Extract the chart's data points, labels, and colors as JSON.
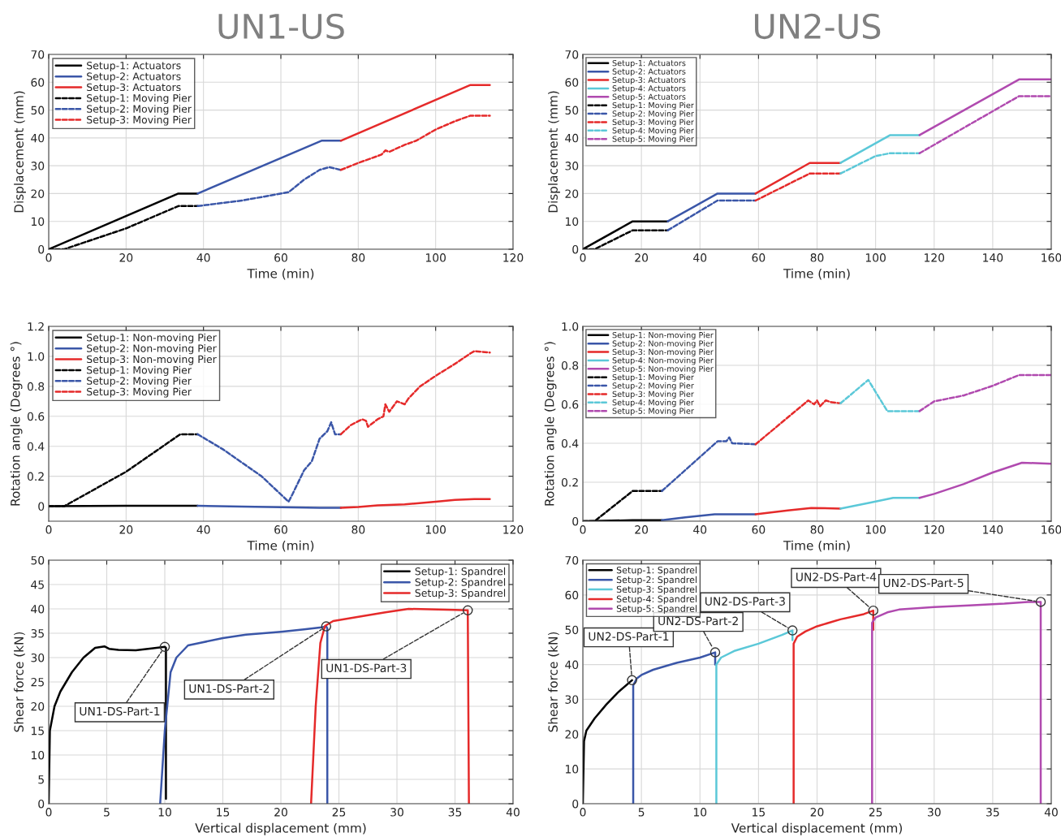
{
  "chart_data": [
    {
      "type": "line",
      "title": "UN1-US",
      "xlabel": "Time (min)",
      "ylabel": "Displacement (mm)",
      "xlim": [
        0,
        120
      ],
      "xticks": [
        0,
        20,
        40,
        60,
        80,
        100,
        120
      ],
      "ylim": [
        0,
        70
      ],
      "yticks": [
        0,
        10,
        20,
        30,
        40,
        50,
        60,
        70
      ],
      "grid": true,
      "legend": "top left",
      "series": [
        {
          "name": "Setup-1: Actuators",
          "color": "#000000",
          "line_style": "solid",
          "x": [
            0,
            33.5,
            38.5
          ],
          "values": [
            0,
            20,
            20
          ]
        },
        {
          "name": "Setup-2: Actuators",
          "color": "#3a56a8",
          "line_style": "solid",
          "x": [
            38.5,
            70.5,
            75.5
          ],
          "values": [
            20,
            39,
            39
          ]
        },
        {
          "name": "Setup-3: Actuators",
          "color": "#e52a2a",
          "line_style": "solid",
          "x": [
            75.5,
            109,
            114
          ],
          "values": [
            39,
            59,
            59
          ]
        },
        {
          "name": "Setup-1: Moving Pier",
          "color": "#000000",
          "line_style": "dashed",
          "x": [
            0,
            4,
            20,
            33.5,
            38.5
          ],
          "values": [
            0,
            0,
            7.5,
            15.5,
            15.5
          ]
        },
        {
          "name": "Setup-2: Moving Pier",
          "color": "#3a56a8",
          "line_style": "dashed",
          "x": [
            38.5,
            50,
            62,
            66,
            70,
            72.5,
            75.5
          ],
          "values": [
            15.5,
            17.5,
            20.5,
            25,
            28.5,
            29.5,
            28.5
          ]
        },
        {
          "name": "Setup-3: Moving Pier",
          "color": "#e52a2a",
          "line_style": "dashed",
          "x": [
            75.5,
            80,
            83,
            86,
            87,
            88,
            92,
            95,
            100,
            105,
            109,
            114
          ],
          "values": [
            28.5,
            31,
            32.5,
            34,
            35.5,
            35,
            37.5,
            39,
            43,
            46,
            48,
            48
          ]
        }
      ]
    },
    {
      "type": "line",
      "title": "UN2-US",
      "xlabel": "Time (min)",
      "ylabel": "Displacement (mm)",
      "xlim": [
        0,
        160
      ],
      "xticks": [
        0,
        20,
        40,
        60,
        80,
        100,
        120,
        140,
        160
      ],
      "ylim": [
        0,
        70
      ],
      "yticks": [
        0,
        10,
        20,
        30,
        40,
        50,
        60,
        70
      ],
      "grid": true,
      "legend": "top left",
      "series": [
        {
          "name": "Setup-1: Actuators",
          "color": "#000000",
          "line_style": "solid",
          "x": [
            0,
            17,
            29
          ],
          "values": [
            0,
            10,
            10
          ]
        },
        {
          "name": "Setup-2: Actuators",
          "color": "#3a56a8",
          "line_style": "solid",
          "x": [
            29,
            46,
            59
          ],
          "values": [
            10,
            20,
            20
          ]
        },
        {
          "name": "Setup-3: Actuators",
          "color": "#e52a2a",
          "line_style": "solid",
          "x": [
            59,
            77.5,
            88
          ],
          "values": [
            20,
            31,
            31
          ]
        },
        {
          "name": "Setup-4: Actuators",
          "color": "#5bc8d8",
          "line_style": "solid",
          "x": [
            88,
            105,
            115
          ],
          "values": [
            31,
            41,
            41
          ]
        },
        {
          "name": "Setup-5: Actuators",
          "color": "#b04aaf",
          "line_style": "solid",
          "x": [
            115,
            149,
            160
          ],
          "values": [
            41,
            61,
            61
          ]
        },
        {
          "name": "Setup-1: Moving Pier",
          "color": "#000000",
          "line_style": "dashed",
          "x": [
            0,
            4,
            17,
            29
          ],
          "values": [
            0,
            0,
            6.8,
            6.8
          ]
        },
        {
          "name": "Setup-2: Moving Pier",
          "color": "#3a56a8",
          "line_style": "dashed",
          "x": [
            29,
            46,
            59
          ],
          "values": [
            6.8,
            17.5,
            17.5
          ]
        },
        {
          "name": "Setup-3: Moving Pier",
          "color": "#e52a2a",
          "line_style": "dashed",
          "x": [
            59,
            77.5,
            88
          ],
          "values": [
            17.5,
            27.2,
            27.2
          ]
        },
        {
          "name": "Setup-4: Moving Pier",
          "color": "#5bc8d8",
          "line_style": "dashed",
          "x": [
            88,
            100,
            105,
            115
          ],
          "values": [
            27.2,
            33.5,
            34.5,
            34.5
          ]
        },
        {
          "name": "Setup-5: Moving Pier",
          "color": "#b04aaf",
          "line_style": "dashed",
          "x": [
            115,
            149,
            160
          ],
          "values": [
            34.5,
            55,
            55
          ]
        }
      ]
    },
    {
      "type": "line",
      "xlabel": "Time (min)",
      "ylabel": "Rotation angle (Degrees °)",
      "xlim": [
        0,
        120
      ],
      "xticks": [
        0,
        20,
        40,
        60,
        80,
        100,
        120
      ],
      "ylim": [
        -0.1,
        1.2
      ],
      "yticks": [
        0,
        0.2,
        0.4,
        0.6,
        0.8,
        {
          "value": 1,
          "label": "1.0"
        },
        1.2
      ],
      "grid": true,
      "legend": "top left",
      "series": [
        {
          "name": "Setup-1: Non-moving Pier",
          "color": "#000000",
          "line_style": "solid",
          "x": [
            0,
            20,
            38.5
          ],
          "values": [
            0,
            0.003,
            0.003
          ]
        },
        {
          "name": "Setup-2: Non-moving Pier",
          "color": "#3a56a8",
          "line_style": "solid",
          "x": [
            38.5,
            50,
            60,
            70,
            75.5
          ],
          "values": [
            0.003,
            -0.002,
            -0.007,
            -0.01,
            -0.01
          ]
        },
        {
          "name": "Setup-3: Non-moving Pier",
          "color": "#e52a2a",
          "line_style": "solid",
          "x": [
            75.5,
            80,
            85,
            92,
            100,
            105,
            110,
            114
          ],
          "values": [
            -0.01,
            -0.005,
            0.005,
            0.012,
            0.03,
            0.042,
            0.048,
            0.048
          ]
        },
        {
          "name": "Setup-1: Moving Pier",
          "color": "#000000",
          "line_style": "dashed",
          "x": [
            0,
            4,
            20,
            34,
            38.5
          ],
          "values": [
            0,
            0,
            0.23,
            0.48,
            0.48
          ]
        },
        {
          "name": "Setup-2: Moving Pier",
          "color": "#3a56a8",
          "line_style": "dashed",
          "x": [
            38.5,
            45,
            55,
            62,
            63,
            66,
            68,
            70,
            72,
            73,
            74,
            75.5
          ],
          "values": [
            0.48,
            0.38,
            0.2,
            0.03,
            0.08,
            0.24,
            0.3,
            0.45,
            0.5,
            0.56,
            0.48,
            0.48
          ]
        },
        {
          "name": "Setup-3: Moving Pier",
          "color": "#e52a2a",
          "line_style": "dashed",
          "x": [
            75.5,
            78,
            81,
            82,
            82.5,
            85,
            86.5,
            87,
            88,
            90,
            92,
            93,
            96,
            100,
            105,
            109,
            110,
            114
          ],
          "values": [
            0.48,
            0.54,
            0.58,
            0.57,
            0.53,
            0.58,
            0.6,
            0.68,
            0.63,
            0.7,
            0.68,
            0.72,
            0.8,
            0.87,
            0.95,
            1.02,
            1.035,
            1.025
          ]
        }
      ]
    },
    {
      "type": "line",
      "xlabel": "Time (min)",
      "ylabel": "Rotation angle (Degrees °)",
      "xlim": [
        0,
        160
      ],
      "xticks": [
        0,
        20,
        40,
        60,
        80,
        100,
        120,
        140,
        160
      ],
      "ylim": [
        0,
        1
      ],
      "yticks": [
        0,
        0.2,
        0.4,
        0.6,
        0.8,
        {
          "value": 1,
          "label": "1.0"
        }
      ],
      "grid": true,
      "legend": "top left",
      "series": [
        {
          "name": "Setup-1: Non-moving Pier",
          "color": "#000000",
          "line_style": "solid",
          "x": [
            0,
            17,
            27
          ],
          "values": [
            0,
            0.005,
            0.005
          ]
        },
        {
          "name": "Setup-2: Non-moving Pier",
          "color": "#3a56a8",
          "line_style": "solid",
          "x": [
            27,
            35,
            45,
            59
          ],
          "values": [
            0.005,
            0.02,
            0.035,
            0.035
          ]
        },
        {
          "name": "Setup-3: Non-moving Pier",
          "color": "#e52a2a",
          "line_style": "solid",
          "x": [
            59,
            70,
            78,
            88
          ],
          "values": [
            0.035,
            0.055,
            0.068,
            0.065
          ]
        },
        {
          "name": "Setup-4: Non-moving Pier",
          "color": "#5bc8d8",
          "line_style": "solid",
          "x": [
            88,
            98,
            106,
            115
          ],
          "values": [
            0.065,
            0.095,
            0.12,
            0.12
          ]
        },
        {
          "name": "Setup-5: Non-moving Pier",
          "color": "#b04aaf",
          "line_style": "solid",
          "x": [
            115,
            120,
            130,
            140,
            150,
            160
          ],
          "values": [
            0.12,
            0.14,
            0.19,
            0.25,
            0.3,
            0.295
          ]
        },
        {
          "name": "Setup-1: Moving Pier",
          "color": "#000000",
          "line_style": "dashed",
          "x": [
            0,
            4,
            17,
            27
          ],
          "values": [
            0,
            0,
            0.155,
            0.155
          ]
        },
        {
          "name": "Setup-2: Moving Pier",
          "color": "#3a56a8",
          "line_style": "dashed",
          "x": [
            27,
            46,
            49,
            50,
            51,
            59
          ],
          "values": [
            0.155,
            0.41,
            0.41,
            0.43,
            0.4,
            0.395
          ]
        },
        {
          "name": "Setup-3: Moving Pier",
          "color": "#e52a2a",
          "line_style": "dashed",
          "x": [
            59,
            77,
            79,
            80,
            81,
            83,
            85,
            88
          ],
          "values": [
            0.395,
            0.62,
            0.6,
            0.62,
            0.59,
            0.62,
            0.61,
            0.605
          ]
        },
        {
          "name": "Setup-4: Moving Pier",
          "color": "#5bc8d8",
          "line_style": "dashed",
          "x": [
            88,
            97.5,
            104,
            115
          ],
          "values": [
            0.605,
            0.725,
            0.565,
            0.565
          ]
        },
        {
          "name": "Setup-5: Moving Pier",
          "color": "#b04aaf",
          "line_style": "dashed",
          "x": [
            115,
            120,
            130,
            140,
            149,
            160
          ],
          "values": [
            0.565,
            0.615,
            0.645,
            0.695,
            0.75,
            0.75
          ]
        }
      ]
    },
    {
      "type": "line",
      "xlabel": "Vertical displacement (mm)",
      "ylabel": "Shear force (kN)",
      "xlim": [
        0,
        40
      ],
      "xticks": [
        0,
        5,
        10,
        15,
        20,
        25,
        30,
        35,
        40
      ],
      "ylim": [
        0,
        50
      ],
      "yticks": [
        0,
        5,
        10,
        15,
        20,
        25,
        30,
        35,
        40,
        45,
        50
      ],
      "grid": true,
      "legend": "top right",
      "series": [
        {
          "name": "Setup-1: Spandrel",
          "color": "#000000",
          "line_style": "solid",
          "x": [
            0,
            0.1,
            0.5,
            1,
            2,
            3,
            4,
            4.8,
            5.2,
            6,
            7.5,
            9,
            10,
            10.1,
            10.1
          ],
          "values": [
            0,
            15,
            20,
            23,
            27,
            30,
            32,
            32.3,
            31.8,
            31.6,
            31.5,
            31.9,
            32.2,
            32,
            1
          ]
        },
        {
          "name": "Setup-2: Spandrel",
          "color": "#3a56a8",
          "line_style": "solid",
          "x": [
            9.6,
            10,
            10.5,
            11,
            12,
            13,
            15,
            17,
            20,
            22,
            23.5,
            23.9,
            24,
            24
          ],
          "values": [
            0,
            15,
            27,
            30,
            32.5,
            33,
            34,
            34.7,
            35.3,
            35.8,
            36.2,
            36.4,
            36,
            0
          ]
        },
        {
          "name": "Setup-3: Spandrel",
          "color": "#e52a2a",
          "line_style": "solid",
          "x": [
            22.6,
            23,
            23.4,
            23.8,
            24.5,
            27,
            29,
            31,
            35,
            36.1,
            36.2
          ],
          "values": [
            0,
            20,
            33,
            36.5,
            37.5,
            38.5,
            39.3,
            40,
            39.8,
            39.7,
            0
          ]
        }
      ],
      "annotations": [
        {
          "text": "UN1-DS-Part-1",
          "x": 10,
          "y": 32.2
        },
        {
          "text": "UN1-DS-Part-2",
          "x": 23.9,
          "y": 36.4
        },
        {
          "text": "UN1-DS-Part-3",
          "x": 36.1,
          "y": 39.7
        }
      ]
    },
    {
      "type": "line",
      "xlabel": "Vertical displacement (mm)",
      "ylabel": "Shear force (kN)",
      "xlim": [
        0,
        40
      ],
      "xticks": [
        0,
        5,
        10,
        15,
        20,
        25,
        30,
        35,
        40
      ],
      "ylim": [
        0,
        70
      ],
      "yticks": [
        0,
        10,
        20,
        30,
        40,
        50,
        60,
        70
      ],
      "grid": true,
      "legend": "top left",
      "series": [
        {
          "name": "Setup-1: Spandrel",
          "color": "#000000",
          "line_style": "solid",
          "x": [
            0,
            0.1,
            0.3,
            1,
            2,
            3,
            4.2
          ],
          "values": [
            0,
            18,
            21,
            24.5,
            28.5,
            32,
            35.5
          ]
        },
        {
          "name": "Setup-2: Spandrel",
          "color": "#3a56a8",
          "line_style": "solid",
          "x": [
            4.3,
            4.3,
            4.6,
            5,
            6,
            8,
            10,
            11.3,
            11.3
          ],
          "values": [
            0,
            34,
            36,
            37,
            38.5,
            40.5,
            42,
            43.5,
            40
          ]
        },
        {
          "name": "Setup-3: Spandrel",
          "color": "#5bc8d8",
          "line_style": "solid",
          "x": [
            11.4,
            11.4,
            11.8,
            13,
            15,
            17,
            17.9,
            17.9
          ],
          "values": [
            0,
            40,
            42,
            44,
            46,
            48.5,
            49.8,
            47
          ]
        },
        {
          "name": "Setup-4: Spandrel",
          "color": "#e52a2a",
          "line_style": "solid",
          "x": [
            18,
            18,
            18.3,
            19,
            20,
            22,
            24,
            24.8,
            24.8
          ],
          "values": [
            0,
            46,
            48,
            49.5,
            51,
            53,
            54.5,
            55.5,
            50
          ]
        },
        {
          "name": "Setup-5: Spandrel",
          "color": "#b04aaf",
          "line_style": "solid",
          "x": [
            24.7,
            24.7,
            25,
            26,
            27,
            30,
            33,
            36,
            38,
            39.1,
            39.1
          ],
          "values": [
            0,
            52,
            53.5,
            55,
            55.8,
            56.5,
            57,
            57.5,
            58,
            58,
            0
          ]
        }
      ],
      "annotations": [
        {
          "text": "UN2-DS-Part-1",
          "x": 4.2,
          "y": 35.5
        },
        {
          "text": "UN2-DS-Part-2",
          "x": 11.3,
          "y": 43.5
        },
        {
          "text": "UN2-DS-Part-3",
          "x": 17.9,
          "y": 49.8
        },
        {
          "text": "UN2-DS-Part-4",
          "x": 24.8,
          "y": 55.5
        },
        {
          "text": "UN2-DS-Part-5",
          "x": 39.1,
          "y": 58
        }
      ]
    }
  ]
}
